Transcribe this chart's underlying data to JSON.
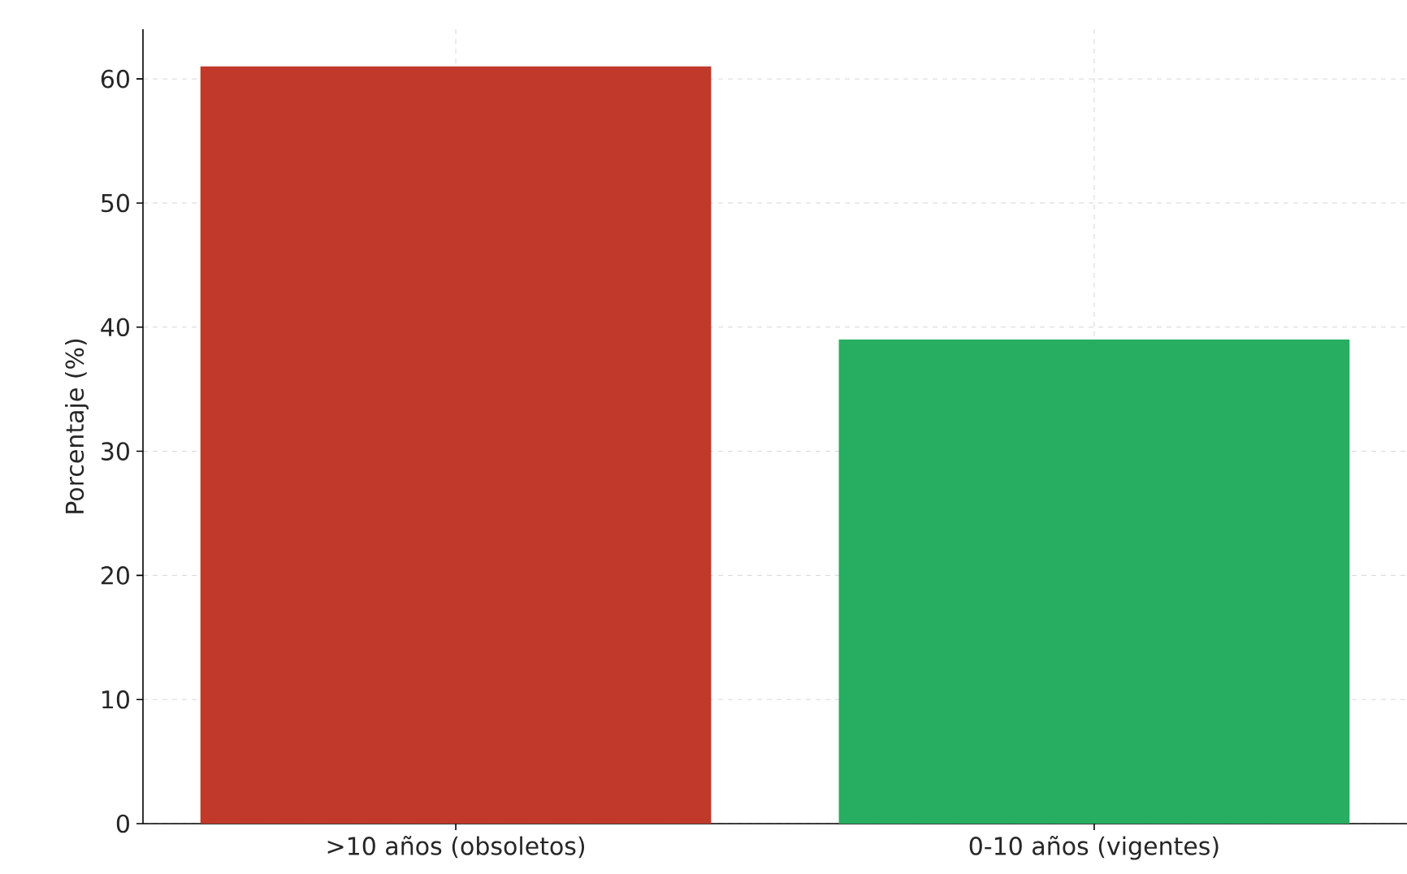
{
  "chart_data": {
    "type": "bar",
    "ylabel": "Porcentaje (%)",
    "categories": [
      ">10 años (obsoletos)",
      "0-10 años (vigentes)"
    ],
    "values": [
      61,
      39
    ],
    "colors": [
      "#c0392b",
      "#27ae60"
    ],
    "ylim": [
      0,
      64
    ],
    "yticks": [
      0,
      10,
      20,
      30,
      40,
      50,
      60
    ],
    "grid": true
  }
}
